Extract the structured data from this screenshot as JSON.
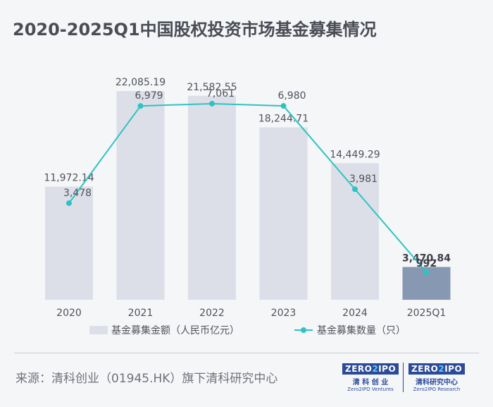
{
  "title": "2020-2025Q1中国股权投资市场基金募集情况",
  "chart_data": {
    "type": "bar+line",
    "categories": [
      "2020",
      "2021",
      "2022",
      "2023",
      "2024",
      "2025Q1"
    ],
    "series": [
      {
        "name": "基金募集金额（人民币亿元）",
        "type": "bar",
        "values": [
          11972.14,
          22085.19,
          21582.55,
          18244.71,
          14449.29,
          3470.84
        ],
        "labels": [
          "11,972.14",
          "22,085.19",
          "21,582.55",
          "18,244.71",
          "14,449.29",
          "3,470.84"
        ],
        "colors": [
          "#dcdfe7",
          "#dcdfe7",
          "#dcdfe7",
          "#dcdfe7",
          "#dcdfe7",
          "#8798b2"
        ]
      },
      {
        "name": "基金募集数量（只）",
        "type": "line",
        "values": [
          3478,
          6979,
          7061,
          6980,
          3981,
          992
        ],
        "labels": [
          "3,478",
          "6,979",
          "7,061",
          "6,980",
          "3,981",
          "992"
        ],
        "color": "#2ec3c2"
      }
    ],
    "ylim_bar": [
      0,
      25000
    ],
    "ylim_line": [
      0,
      8000
    ]
  },
  "footer": {
    "source": "来源：清科创业（01945.HK）旗下清科研究中心",
    "logo1": {
      "mark_a": "ZERO",
      "mark_num": "2",
      "mark_b": "IPO",
      "cn": "清 科 创 业",
      "en": "Zero2IPO Ventures"
    },
    "logo2": {
      "mark_a": "ZERO",
      "mark_num": "2",
      "mark_b": "IPO",
      "cn": "清科研究中心",
      "en": "Zero2IPO Research"
    }
  }
}
